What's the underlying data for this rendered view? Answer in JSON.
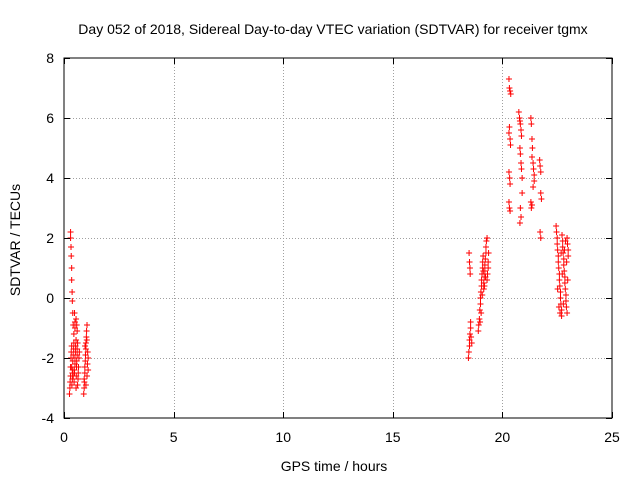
{
  "chart_data": {
    "type": "scatter",
    "title": "Day 052 of 2018, Sidereal Day-to-day VTEC variation (SDTVAR) for receiver tgmx",
    "xlabel": "GPS time / hours",
    "ylabel": "SDTVAR / TECUs",
    "xlim": [
      0,
      25
    ],
    "ylim": [
      -4,
      8
    ],
    "xticks": [
      0,
      5,
      10,
      15,
      20,
      25
    ],
    "xtick_labels": [
      "0",
      "5",
      "10",
      "15",
      "20",
      "25"
    ],
    "yticks": [
      -4,
      -2,
      0,
      2,
      4,
      6,
      8
    ],
    "ytick_labels": [
      "-4",
      "-2",
      "0",
      "2",
      "4",
      "6",
      "8"
    ],
    "grid": true,
    "marker": "+",
    "color": "#ff0000",
    "series": [
      {
        "name": "SDTVAR",
        "points": [
          [
            0.3,
            2.2
          ],
          [
            0.3,
            2.0
          ],
          [
            0.32,
            1.7
          ],
          [
            0.33,
            1.4
          ],
          [
            0.35,
            1.0
          ],
          [
            0.35,
            0.6
          ],
          [
            0.37,
            0.2
          ],
          [
            0.38,
            -0.1
          ],
          [
            0.4,
            -0.5
          ],
          [
            0.42,
            -0.9
          ],
          [
            0.25,
            -3.2
          ],
          [
            0.27,
            -3.0
          ],
          [
            0.28,
            -2.8
          ],
          [
            0.3,
            -2.6
          ],
          [
            0.3,
            -2.3
          ],
          [
            0.32,
            -2.0
          ],
          [
            0.33,
            -1.8
          ],
          [
            0.35,
            -1.6
          ],
          [
            0.36,
            -2.9
          ],
          [
            0.38,
            -2.7
          ],
          [
            0.4,
            -2.4
          ],
          [
            0.4,
            -2.1
          ],
          [
            0.42,
            -1.9
          ],
          [
            0.44,
            -1.7
          ],
          [
            0.45,
            -1.5
          ],
          [
            0.46,
            -2.8
          ],
          [
            0.48,
            -2.5
          ],
          [
            0.5,
            -2.2
          ],
          [
            0.5,
            -2.0
          ],
          [
            0.52,
            -1.8
          ],
          [
            0.53,
            -1.6
          ],
          [
            0.55,
            -1.4
          ],
          [
            0.55,
            -3.0
          ],
          [
            0.56,
            -2.6
          ],
          [
            0.57,
            -2.3
          ],
          [
            0.58,
            -2.1
          ],
          [
            0.6,
            -1.9
          ],
          [
            0.6,
            -1.7
          ],
          [
            0.62,
            -1.5
          ],
          [
            0.62,
            -2.9
          ],
          [
            0.64,
            -2.7
          ],
          [
            0.65,
            -2.5
          ],
          [
            0.66,
            -2.3
          ],
          [
            0.68,
            -2.0
          ],
          [
            0.7,
            -1.8
          ],
          [
            0.45,
            -1.2
          ],
          [
            0.5,
            -1.0
          ],
          [
            0.5,
            -0.8
          ],
          [
            0.48,
            -0.5
          ],
          [
            0.55,
            -0.7
          ],
          [
            0.58,
            -0.9
          ],
          [
            0.6,
            -1.1
          ],
          [
            0.35,
            -2.3
          ],
          [
            0.38,
            -2.5
          ],
          [
            0.42,
            -2.6
          ],
          [
            0.47,
            -2.4
          ],
          [
            0.9,
            -3.2
          ],
          [
            0.92,
            -3.0
          ],
          [
            0.93,
            -2.8
          ],
          [
            0.95,
            -2.5
          ],
          [
            0.95,
            -2.3
          ],
          [
            0.97,
            -2.1
          ],
          [
            0.98,
            -1.9
          ],
          [
            1.0,
            -1.7
          ],
          [
            1.0,
            -1.5
          ],
          [
            1.02,
            -1.3
          ],
          [
            1.03,
            -1.1
          ],
          [
            1.05,
            -0.9
          ],
          [
            1.05,
            -2.6
          ],
          [
            1.07,
            -2.2
          ],
          [
            1.08,
            -1.8
          ],
          [
            1.1,
            -2.4
          ],
          [
            1.1,
            -2.0
          ],
          [
            0.92,
            -2.7
          ],
          [
            0.96,
            -1.6
          ],
          [
            1.0,
            -2.9
          ],
          [
            1.04,
            -1.4
          ],
          [
            18.45,
            -2.0
          ],
          [
            18.47,
            -1.8
          ],
          [
            18.5,
            -1.6
          ],
          [
            18.5,
            -1.4
          ],
          [
            18.52,
            -1.2
          ],
          [
            18.55,
            -1.0
          ],
          [
            18.55,
            -0.8
          ],
          [
            18.57,
            -1.3
          ],
          [
            18.6,
            -1.5
          ],
          [
            18.48,
            1.5
          ],
          [
            18.5,
            1.2
          ],
          [
            18.52,
            1.0
          ],
          [
            18.53,
            0.8
          ],
          [
            18.9,
            -1.1
          ],
          [
            18.92,
            -0.9
          ],
          [
            18.95,
            -0.7
          ],
          [
            18.97,
            -0.4
          ],
          [
            19.0,
            -0.2
          ],
          [
            19.0,
            0.0
          ],
          [
            19.02,
            0.2
          ],
          [
            19.05,
            0.4
          ],
          [
            19.05,
            0.6
          ],
          [
            19.07,
            0.8
          ],
          [
            19.1,
            1.0
          ],
          [
            19.1,
            1.2
          ],
          [
            19.12,
            1.4
          ],
          [
            19.15,
            0.3
          ],
          [
            19.15,
            0.5
          ],
          [
            19.17,
            0.7
          ],
          [
            19.2,
            0.9
          ],
          [
            19.2,
            1.1
          ],
          [
            19.22,
            1.3
          ],
          [
            19.25,
            1.5
          ],
          [
            19.25,
            1.7
          ],
          [
            19.27,
            1.9
          ],
          [
            19.3,
            2.0
          ],
          [
            19.3,
            0.6
          ],
          [
            19.32,
            0.8
          ],
          [
            19.35,
            1.0
          ],
          [
            19.35,
            1.2
          ],
          [
            19.37,
            1.5
          ],
          [
            18.98,
            -0.8
          ],
          [
            19.03,
            -0.5
          ],
          [
            19.08,
            0.1
          ],
          [
            19.13,
            0.9
          ],
          [
            19.18,
            0.4
          ],
          [
            19.23,
            0.7
          ],
          [
            20.3,
            7.3
          ],
          [
            20.32,
            7.0
          ],
          [
            20.35,
            6.9
          ],
          [
            20.38,
            6.8
          ],
          [
            20.3,
            5.5
          ],
          [
            20.32,
            5.7
          ],
          [
            20.35,
            5.3
          ],
          [
            20.37,
            5.1
          ],
          [
            20.3,
            4.2
          ],
          [
            20.33,
            4.0
          ],
          [
            20.35,
            3.8
          ],
          [
            20.3,
            3.2
          ],
          [
            20.32,
            3.0
          ],
          [
            20.35,
            2.9
          ],
          [
            20.75,
            6.2
          ],
          [
            20.78,
            6.0
          ],
          [
            20.8,
            5.9
          ],
          [
            20.82,
            5.8
          ],
          [
            20.85,
            5.6
          ],
          [
            20.87,
            5.4
          ],
          [
            20.8,
            5.0
          ],
          [
            20.82,
            4.8
          ],
          [
            20.85,
            4.5
          ],
          [
            20.87,
            4.3
          ],
          [
            20.9,
            4.0
          ],
          [
            20.9,
            3.5
          ],
          [
            20.82,
            3.0
          ],
          [
            20.85,
            2.7
          ],
          [
            20.8,
            2.5
          ],
          [
            21.3,
            6.0
          ],
          [
            21.32,
            5.8
          ],
          [
            21.35,
            5.3
          ],
          [
            21.37,
            5.0
          ],
          [
            21.35,
            4.7
          ],
          [
            21.4,
            4.5
          ],
          [
            21.42,
            4.3
          ],
          [
            21.45,
            4.1
          ],
          [
            21.45,
            3.9
          ],
          [
            21.4,
            3.7
          ],
          [
            21.3,
            3.2
          ],
          [
            21.32,
            3.0
          ],
          [
            21.35,
            3.1
          ],
          [
            21.7,
            4.6
          ],
          [
            21.72,
            4.4
          ],
          [
            21.75,
            4.2
          ],
          [
            21.75,
            3.5
          ],
          [
            21.78,
            3.3
          ],
          [
            21.72,
            2.2
          ],
          [
            21.75,
            2.0
          ],
          [
            22.45,
            2.4
          ],
          [
            22.47,
            2.2
          ],
          [
            22.5,
            2.0
          ],
          [
            22.5,
            1.8
          ],
          [
            22.52,
            1.6
          ],
          [
            22.55,
            1.4
          ],
          [
            22.55,
            1.2
          ],
          [
            22.57,
            1.0
          ],
          [
            22.6,
            0.8
          ],
          [
            22.6,
            0.6
          ],
          [
            22.62,
            0.4
          ],
          [
            22.65,
            0.2
          ],
          [
            22.65,
            0.0
          ],
          [
            22.67,
            -0.2
          ],
          [
            22.7,
            -0.4
          ],
          [
            22.7,
            -0.6
          ],
          [
            22.72,
            2.1
          ],
          [
            22.75,
            1.9
          ],
          [
            22.75,
            1.7
          ],
          [
            22.77,
            1.5
          ],
          [
            22.8,
            1.3
          ],
          [
            22.8,
            1.1
          ],
          [
            22.82,
            0.9
          ],
          [
            22.85,
            0.7
          ],
          [
            22.85,
            0.5
          ],
          [
            22.87,
            0.3
          ],
          [
            22.9,
            0.1
          ],
          [
            22.9,
            -0.1
          ],
          [
            22.92,
            -0.3
          ],
          [
            22.95,
            -0.5
          ],
          [
            22.95,
            2.0
          ],
          [
            22.97,
            1.8
          ],
          [
            23.0,
            1.6
          ],
          [
            23.0,
            1.4
          ],
          [
            22.52,
            0.3
          ],
          [
            22.58,
            -0.3
          ],
          [
            22.63,
            -0.5
          ],
          [
            22.68,
            1.5
          ],
          [
            22.73,
            0.8
          ],
          [
            22.78,
            -0.2
          ],
          [
            22.83,
            1.6
          ],
          [
            22.88,
            1.9
          ],
          [
            22.93,
            1.2
          ],
          [
            22.98,
            0.6
          ]
        ]
      }
    ]
  }
}
